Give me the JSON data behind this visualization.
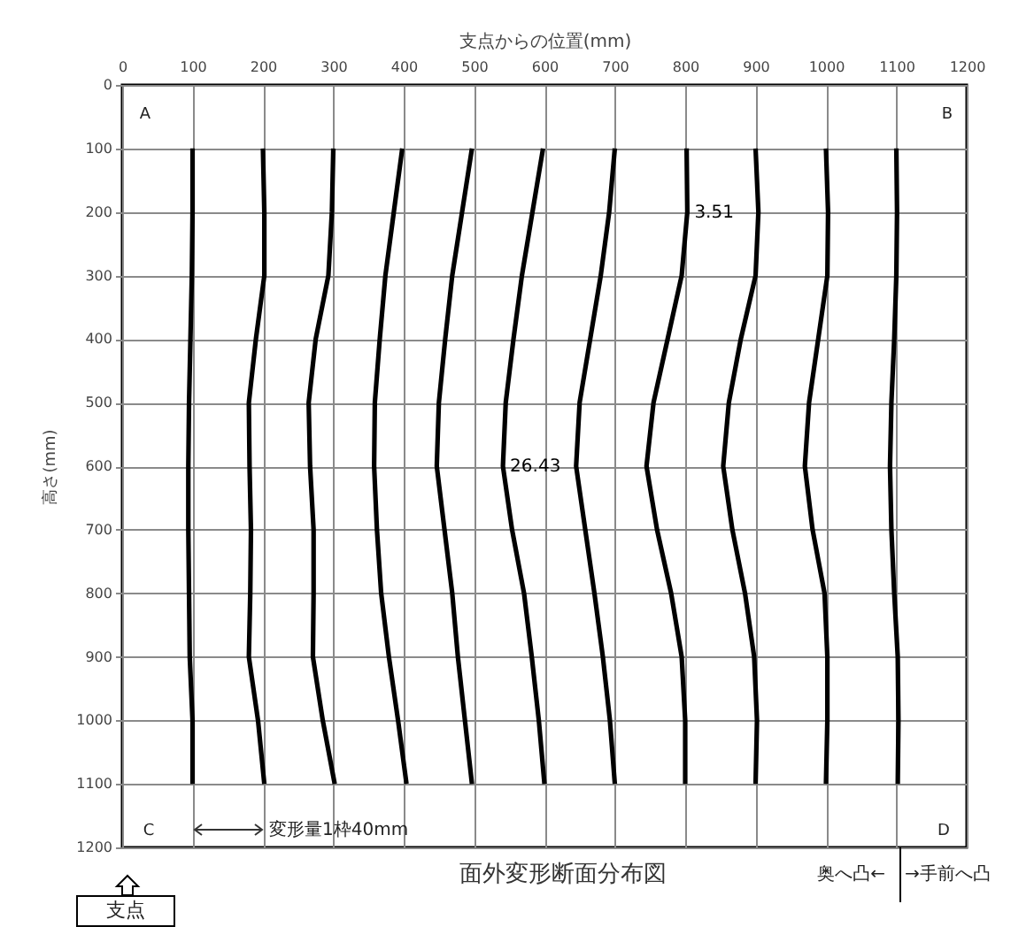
{
  "chart_data": {
    "type": "line",
    "title": "面外変形断面分布図",
    "xlabel": "支点からの位置(mm)",
    "ylabel": "高さ(mm)",
    "xlim": [
      0,
      1200
    ],
    "xticks": [
      0,
      100,
      200,
      300,
      400,
      500,
      600,
      700,
      800,
      900,
      1000,
      1100,
      1200
    ],
    "ylim": [
      1200,
      0
    ],
    "yticks": [
      0,
      100,
      200,
      300,
      400,
      500,
      600,
      700,
      800,
      900,
      1000,
      1100,
      1200
    ],
    "grid": true,
    "marker": "none",
    "line_style": "solid",
    "series": [
      {
        "color": "#000000",
        "x": [
          100,
          100,
          99,
          97,
          95,
          94,
          94,
          95,
          96,
          100,
          100
        ],
        "values": [
          100,
          200,
          300,
          400,
          500,
          600,
          700,
          800,
          900,
          1000,
          1100
        ]
      },
      {
        "color": "#000000",
        "x": [
          200,
          202,
          202,
          190,
          180,
          181,
          183,
          182,
          180,
          193,
          202
        ],
        "values": [
          100,
          200,
          300,
          400,
          500,
          600,
          700,
          800,
          900,
          1000,
          1100
        ]
      },
      {
        "color": "#000000",
        "x": [
          300,
          298,
          293,
          275,
          265,
          267,
          272,
          272,
          271,
          285,
          302
        ],
        "values": [
          100,
          200,
          300,
          400,
          500,
          600,
          700,
          800,
          900,
          1000,
          1100
        ]
      },
      {
        "color": "#000000",
        "x": [
          398,
          386,
          374,
          366,
          359,
          358,
          362,
          368,
          379,
          392,
          404
        ],
        "values": [
          100,
          200,
          300,
          400,
          500,
          600,
          700,
          800,
          900,
          1000,
          1100
        ]
      },
      {
        "color": "#000000",
        "x": [
          497,
          483,
          469,
          459,
          450,
          447,
          458,
          469,
          477,
          487,
          497
        ],
        "values": [
          100,
          200,
          300,
          400,
          500,
          600,
          700,
          800,
          900,
          1000,
          1100
        ]
      },
      {
        "color": "#000000",
        "x": [
          598,
          583,
          568,
          556,
          545,
          541,
          554,
          571,
          582,
          592,
          600
        ],
        "values": [
          100,
          200,
          300,
          400,
          500,
          600,
          700,
          800,
          900,
          1000,
          1100
        ]
      },
      {
        "color": "#000000",
        "x": [
          700,
          692,
          680,
          665,
          650,
          645,
          658,
          671,
          683,
          693,
          700
        ],
        "values": [
          100,
          200,
          300,
          400,
          500,
          600,
          700,
          800,
          900,
          1000,
          1100
        ]
      },
      {
        "color": "#000000",
        "x": [
          802,
          803,
          795,
          775,
          755,
          745,
          760,
          780,
          795,
          800,
          800
        ],
        "values": [
          100,
          200,
          300,
          400,
          500,
          600,
          700,
          800,
          900,
          1000,
          1100
        ]
      },
      {
        "color": "#000000",
        "x": [
          900,
          904,
          900,
          879,
          862,
          854,
          867,
          885,
          898,
          902,
          900
        ],
        "values": [
          100,
          200,
          300,
          400,
          500,
          600,
          700,
          800,
          900,
          1000,
          1100
        ]
      },
      {
        "color": "#000000",
        "x": [
          1000,
          1003,
          1002,
          989,
          976,
          970,
          981,
          998,
          1002,
          1002,
          1000
        ],
        "values": [
          100,
          200,
          300,
          400,
          500,
          600,
          700,
          800,
          900,
          1000,
          1100
        ]
      },
      {
        "color": "#000000",
        "x": [
          1100,
          1101,
          1100,
          1097,
          1093,
          1091,
          1093,
          1097,
          1102,
          1103,
          1102
        ],
        "values": [
          100,
          200,
          300,
          400,
          500,
          600,
          700,
          800,
          900,
          1000,
          1100
        ]
      }
    ],
    "annotations": [
      {
        "text": "26.43",
        "x": 541,
        "y": 600
      },
      {
        "text": "3.51",
        "x": 803,
        "y": 200
      },
      "A",
      "B",
      "C",
      "D",
      "変形量1枠40mm",
      "奥へ凸←",
      "→手前へ凸",
      "支点"
    ]
  }
}
